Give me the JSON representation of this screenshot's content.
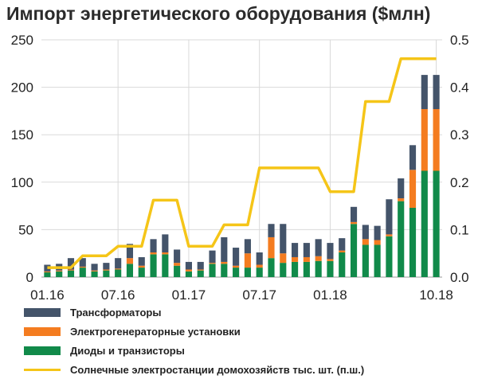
{
  "chart_data": {
    "type": "bar",
    "title": "Импорт энергетического оборудования ($млн)",
    "x_tick_labels": [
      "01.16",
      "07.16",
      "01.17",
      "07.17",
      "01.18",
      "10.18"
    ],
    "categories": [
      "01.16",
      "02.16",
      "03.16",
      "04.16",
      "05.16",
      "06.16",
      "07.16",
      "08.16",
      "09.16",
      "10.16",
      "11.16",
      "12.16",
      "01.17",
      "02.17",
      "03.17",
      "04.17",
      "05.17",
      "06.17",
      "07.17",
      "08.17",
      "09.17",
      "10.17",
      "11.17",
      "12.17",
      "01.18",
      "02.18",
      "03.18",
      "04.18",
      "05.18",
      "06.18",
      "07.18",
      "08.18",
      "09.18",
      "10.18"
    ],
    "ylim_left": [
      0,
      250
    ],
    "yticks_left": [
      0,
      50,
      100,
      150,
      200,
      250
    ],
    "ylim_right": [
      0,
      0.5
    ],
    "yticks_right": [
      "0.0",
      "0.1",
      "0.2",
      "0.3",
      "0.4",
      "0.5"
    ],
    "grid": true,
    "legend_position": "bottom",
    "series": [
      {
        "name": "Диоды и транзисторы",
        "type": "bar",
        "axis": "left",
        "color": "#118a4a",
        "values": [
          5,
          6,
          7,
          10,
          6,
          7,
          8,
          14,
          10,
          24,
          24,
          12,
          6,
          7,
          14,
          14,
          10,
          10,
          10,
          20,
          15,
          16,
          16,
          17,
          17,
          26,
          56,
          34,
          34,
          43,
          80,
          73,
          112,
          112
        ]
      },
      {
        "name": "Электрогенераторные установки",
        "type": "bar",
        "axis": "left",
        "color": "#f47c20",
        "values": [
          1,
          1,
          1,
          1,
          1,
          1,
          1,
          6,
          2,
          2,
          2,
          3,
          2,
          1,
          1,
          2,
          2,
          15,
          3,
          22,
          10,
          5,
          5,
          5,
          2,
          2,
          2,
          6,
          5,
          2,
          3,
          40,
          65,
          65
        ]
      },
      {
        "name": "Трансформаторы",
        "type": "bar",
        "axis": "left",
        "color": "#44546a",
        "values": [
          7,
          7,
          12,
          9,
          7,
          7,
          11,
          15,
          9,
          14,
          19,
          14,
          8,
          8,
          13,
          26,
          19,
          15,
          13,
          14,
          31,
          15,
          15,
          18,
          17,
          13,
          16,
          15,
          15,
          37,
          21,
          26,
          36,
          36
        ]
      },
      {
        "name": "Солнечные электростанции домохозяйств тыс. шт. (п.ш.)",
        "type": "line",
        "axis": "right",
        "color": "#f5c518",
        "values": [
          0.02,
          0.02,
          0.02,
          0.045,
          0.045,
          0.045,
          0.065,
          0.065,
          0.065,
          0.162,
          0.162,
          0.162,
          0.065,
          0.065,
          0.065,
          0.11,
          0.11,
          0.11,
          0.23,
          0.23,
          0.23,
          0.23,
          0.23,
          0.23,
          0.18,
          0.18,
          0.18,
          0.37,
          0.37,
          0.37,
          0.46,
          0.46,
          0.46,
          0.46
        ]
      }
    ]
  }
}
